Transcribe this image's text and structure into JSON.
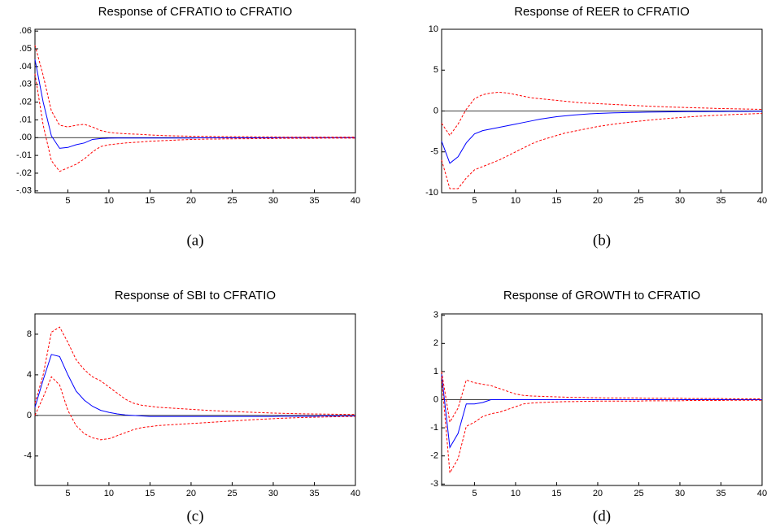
{
  "chart_data": [
    {
      "type": "line",
      "title": "Response of CFRATIO to CFRATIO",
      "caption": "(a)",
      "x": [
        1,
        2,
        3,
        4,
        5,
        6,
        7,
        8,
        9,
        10,
        11,
        12,
        13,
        14,
        15,
        16,
        17,
        18,
        19,
        20,
        21,
        22,
        23,
        24,
        25,
        26,
        27,
        28,
        29,
        30,
        31,
        32,
        33,
        34,
        35,
        36,
        37,
        38,
        39,
        40
      ],
      "xlim": [
        1,
        40
      ],
      "xticks": [
        5,
        10,
        15,
        20,
        25,
        30,
        35,
        40
      ],
      "ylim": [
        -0.031,
        0.061
      ],
      "yticks": [
        {
          "value": 0.06,
          "label": ".06"
        },
        {
          "value": 0.05,
          "label": ".05"
        },
        {
          "value": 0.04,
          "label": ".04"
        },
        {
          "value": 0.03,
          "label": ".03"
        },
        {
          "value": 0.02,
          "label": ".02"
        },
        {
          "value": 0.01,
          "label": ".01"
        },
        {
          "value": 0,
          "label": ".00"
        },
        {
          "value": -0.01,
          "label": "-.01"
        },
        {
          "value": -0.02,
          "label": "-.02"
        },
        {
          "value": -0.03,
          "label": "-.03"
        }
      ],
      "series": [
        {
          "color": "#0000ff",
          "dash": false,
          "values": [
            0.044,
            0.02,
            0.001,
            -0.006,
            -0.0055,
            -0.004,
            -0.003,
            -0.001,
            -0.0005,
            -0.0003,
            -0.0002,
            -0.0002,
            -0.0002,
            -0.0002,
            -0.0002,
            -0.0002,
            -0.0002,
            -0.0002,
            -0.0002,
            -0.0002,
            -0.0001,
            -0.0001,
            -0.0001,
            -0.0001,
            -0.0001,
            -0.0001,
            -0.0001,
            -0.0001,
            -0.0001,
            -0.0001,
            0,
            0,
            0,
            0,
            0,
            0,
            0,
            0,
            0,
            0
          ]
        },
        {
          "color": "#ff0000",
          "dash": true,
          "values": [
            0.052,
            0.035,
            0.015,
            0.007,
            0.006,
            0.007,
            0.0075,
            0.006,
            0.004,
            0.003,
            0.0025,
            0.0022,
            0.002,
            0.0018,
            0.0015,
            0.0013,
            0.0011,
            0.001,
            0.0009,
            0.0008,
            0.0007,
            0.0007,
            0.0006,
            0.0006,
            0.0005,
            0.0005,
            0.0005,
            0.0004,
            0.0004,
            0.0004,
            0.0003,
            0.0003,
            0.0003,
            0.0003,
            0.0003,
            0.0003,
            0.0003,
            0.0003,
            0.0003,
            0.0003
          ]
        },
        {
          "color": "#ff0000",
          "dash": true,
          "values": [
            0.036,
            0.007,
            -0.013,
            -0.019,
            -0.017,
            -0.015,
            -0.012,
            -0.008,
            -0.005,
            -0.004,
            -0.0035,
            -0.003,
            -0.0027,
            -0.0024,
            -0.002,
            -0.0018,
            -0.0016,
            -0.0014,
            -0.0012,
            -0.001,
            -0.0009,
            -0.0008,
            -0.0008,
            -0.0007,
            -0.0007,
            -0.0006,
            -0.0006,
            -0.0005,
            -0.0005,
            -0.0005,
            -0.0004,
            -0.0004,
            -0.0004,
            -0.0004,
            -0.0004,
            -0.0003,
            -0.0003,
            -0.0003,
            -0.0003,
            -0.0003
          ]
        }
      ]
    },
    {
      "type": "line",
      "title": "Response of REER to CFRATIO",
      "caption": "(b)",
      "x": [
        1,
        2,
        3,
        4,
        5,
        6,
        7,
        8,
        9,
        10,
        11,
        12,
        13,
        14,
        15,
        16,
        17,
        18,
        19,
        20,
        21,
        22,
        23,
        24,
        25,
        26,
        27,
        28,
        29,
        30,
        31,
        32,
        33,
        34,
        35,
        36,
        37,
        38,
        39,
        40
      ],
      "xlim": [
        1,
        40
      ],
      "xticks": [
        5,
        10,
        15,
        20,
        25,
        30,
        35,
        40
      ],
      "ylim": [
        -10,
        10
      ],
      "yticks": [
        10,
        5,
        0,
        -5,
        -10
      ],
      "series": [
        {
          "color": "#0000ff",
          "dash": false,
          "values": [
            -3.7,
            -6.4,
            -5.6,
            -3.9,
            -2.8,
            -2.4,
            -2.2,
            -2.0,
            -1.8,
            -1.6,
            -1.4,
            -1.2,
            -1.0,
            -0.85,
            -0.7,
            -0.6,
            -0.5,
            -0.42,
            -0.35,
            -0.3,
            -0.26,
            -0.23,
            -0.2,
            -0.18,
            -0.16,
            -0.14,
            -0.12,
            -0.11,
            -0.1,
            -0.09,
            -0.08,
            -0.07,
            -0.07,
            -0.06,
            -0.06,
            -0.05,
            -0.05,
            -0.05,
            -0.04,
            -0.04
          ]
        },
        {
          "color": "#ff0000",
          "dash": true,
          "values": [
            -1.5,
            -3.0,
            -1.6,
            0.2,
            1.5,
            2.0,
            2.2,
            2.3,
            2.2,
            2.0,
            1.8,
            1.6,
            1.5,
            1.4,
            1.3,
            1.2,
            1.1,
            1.0,
            0.95,
            0.9,
            0.85,
            0.8,
            0.75,
            0.7,
            0.65,
            0.6,
            0.56,
            0.52,
            0.48,
            0.45,
            0.42,
            0.39,
            0.36,
            0.33,
            0.3,
            0.28,
            0.26,
            0.24,
            0.22,
            0.2
          ]
        },
        {
          "color": "#ff0000",
          "dash": true,
          "values": [
            -6.0,
            -9.5,
            -9.5,
            -8.2,
            -7.2,
            -6.8,
            -6.4,
            -6.0,
            -5.5,
            -5.0,
            -4.5,
            -4.0,
            -3.6,
            -3.3,
            -3.0,
            -2.7,
            -2.5,
            -2.3,
            -2.1,
            -1.9,
            -1.75,
            -1.6,
            -1.48,
            -1.36,
            -1.25,
            -1.15,
            -1.05,
            -0.96,
            -0.88,
            -0.8,
            -0.73,
            -0.66,
            -0.6,
            -0.55,
            -0.5,
            -0.45,
            -0.41,
            -0.37,
            -0.33,
            -0.3
          ]
        }
      ]
    },
    {
      "type": "line",
      "title": "Response of SBI to CFRATIO",
      "caption": "(c)",
      "x": [
        1,
        2,
        3,
        4,
        5,
        6,
        7,
        8,
        9,
        10,
        11,
        12,
        13,
        14,
        15,
        16,
        17,
        18,
        19,
        20,
        21,
        22,
        23,
        24,
        25,
        26,
        27,
        28,
        29,
        30,
        31,
        32,
        33,
        34,
        35,
        36,
        37,
        38,
        39,
        40
      ],
      "xlim": [
        1,
        40
      ],
      "xticks": [
        5,
        10,
        15,
        20,
        25,
        30,
        35,
        40
      ],
      "ylim": [
        -6.9,
        10
      ],
      "yticks": [
        8,
        4,
        0,
        -4
      ],
      "series": [
        {
          "color": "#0000ff",
          "dash": false,
          "values": [
            0.8,
            3.5,
            6.0,
            5.8,
            4.0,
            2.4,
            1.5,
            0.9,
            0.5,
            0.3,
            0.15,
            0.05,
            0,
            -0.05,
            -0.1,
            -0.1,
            -0.1,
            -0.1,
            -0.1,
            -0.1,
            -0.1,
            -0.1,
            -0.1,
            -0.1,
            -0.1,
            -0.1,
            -0.1,
            -0.1,
            -0.1,
            -0.1,
            -0.08,
            -0.08,
            -0.08,
            -0.08,
            -0.08,
            -0.05,
            -0.05,
            -0.05,
            -0.05,
            -0.05
          ]
        },
        {
          "color": "#ff0000",
          "dash": true,
          "values": [
            1.2,
            4.0,
            8.2,
            8.7,
            7.2,
            5.5,
            4.5,
            3.8,
            3.4,
            2.8,
            2.2,
            1.6,
            1.2,
            1.0,
            0.9,
            0.8,
            0.75,
            0.7,
            0.65,
            0.6,
            0.55,
            0.5,
            0.46,
            0.42,
            0.38,
            0.35,
            0.32,
            0.29,
            0.26,
            0.23,
            0.21,
            0.19,
            0.17,
            0.15,
            0.14,
            0.13,
            0.12,
            0.11,
            0.1,
            0.1
          ]
        },
        {
          "color": "#ff0000",
          "dash": true,
          "values": [
            0.0,
            1.8,
            3.8,
            3.0,
            0.5,
            -1.0,
            -1.8,
            -2.2,
            -2.4,
            -2.3,
            -2.0,
            -1.7,
            -1.4,
            -1.2,
            -1.1,
            -1.0,
            -0.95,
            -0.9,
            -0.85,
            -0.8,
            -0.75,
            -0.7,
            -0.65,
            -0.6,
            -0.55,
            -0.5,
            -0.45,
            -0.4,
            -0.36,
            -0.32,
            -0.28,
            -0.25,
            -0.22,
            -0.2,
            -0.18,
            -0.16,
            -0.14,
            -0.12,
            -0.11,
            -0.1
          ]
        }
      ]
    },
    {
      "type": "line",
      "title": "Response of GROWTH to CFRATIO",
      "caption": "(d)",
      "x": [
        1,
        2,
        3,
        4,
        5,
        6,
        7,
        8,
        9,
        10,
        11,
        12,
        13,
        14,
        15,
        16,
        17,
        18,
        19,
        20,
        21,
        22,
        23,
        24,
        25,
        26,
        27,
        28,
        29,
        30,
        31,
        32,
        33,
        34,
        35,
        36,
        37,
        38,
        39,
        40
      ],
      "xlim": [
        1,
        40
      ],
      "xticks": [
        5,
        10,
        15,
        20,
        25,
        30,
        35,
        40
      ],
      "ylim": [
        -3.05,
        3.05
      ],
      "yticks": [
        3,
        2,
        1,
        0,
        -1,
        -2,
        -3
      ],
      "series": [
        {
          "color": "#0000ff",
          "dash": false,
          "values": [
            0.9,
            -1.7,
            -1.2,
            -0.15,
            -0.15,
            -0.1,
            0,
            0,
            0,
            0,
            0,
            0,
            0,
            0,
            0,
            0,
            0,
            0,
            0,
            0,
            0,
            0,
            0,
            0,
            0,
            0,
            0,
            0,
            0,
            0,
            0,
            0,
            0,
            0,
            0,
            0,
            0,
            0,
            0,
            0
          ]
        },
        {
          "color": "#ff0000",
          "dash": true,
          "values": [
            1.0,
            -0.8,
            -0.3,
            0.7,
            0.6,
            0.55,
            0.5,
            0.4,
            0.3,
            0.2,
            0.15,
            0.13,
            0.12,
            0.11,
            0.1,
            0.09,
            0.08,
            0.08,
            0.07,
            0.07,
            0.06,
            0.06,
            0.06,
            0.06,
            0.06,
            0.05,
            0.05,
            0.05,
            0.05,
            0.05,
            0.04,
            0.04,
            0.04,
            0.04,
            0.04,
            0.03,
            0.03,
            0.03,
            0.03,
            0.03
          ]
        },
        {
          "color": "#ff0000",
          "dash": true,
          "values": [
            0.8,
            -2.6,
            -2.1,
            -0.95,
            -0.8,
            -0.6,
            -0.5,
            -0.45,
            -0.35,
            -0.25,
            -0.15,
            -0.12,
            -0.1,
            -0.09,
            -0.08,
            -0.07,
            -0.07,
            -0.06,
            -0.06,
            -0.05,
            -0.05,
            -0.05,
            -0.05,
            -0.05,
            -0.05,
            -0.04,
            -0.04,
            -0.04,
            -0.04,
            -0.04,
            -0.03,
            -0.03,
            -0.03,
            -0.03,
            -0.03,
            -0.02,
            -0.02,
            -0.02,
            -0.02,
            -0.02
          ]
        }
      ]
    }
  ]
}
